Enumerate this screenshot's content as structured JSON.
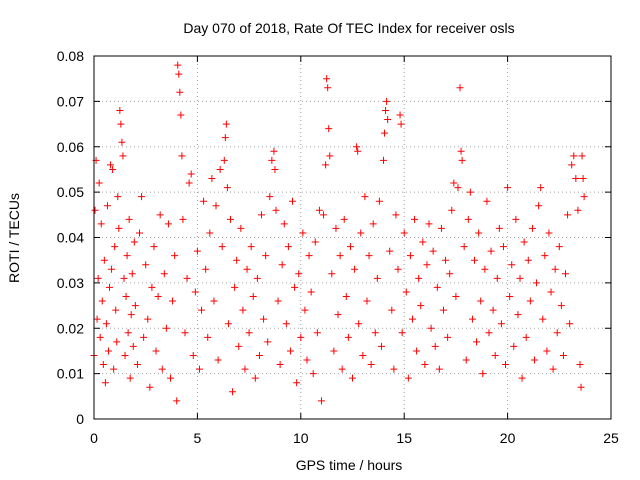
{
  "chart_data": {
    "type": "scatter",
    "title": "Day 070 of 2018, Rate Of TEC Index for receiver osls",
    "xlabel": "GPS time / hours",
    "ylabel": "ROTI / TECUs",
    "xlim": [
      0,
      25
    ],
    "ylim": [
      0,
      0.08
    ],
    "x_ticks": [
      0,
      5,
      10,
      15,
      20,
      25
    ],
    "x_tick_labels": [
      "0",
      "5",
      "10",
      "15",
      "20",
      "25"
    ],
    "y_ticks": [
      0,
      0.01,
      0.02,
      0.03,
      0.04,
      0.05,
      0.06,
      0.07,
      0.08
    ],
    "y_tick_labels": [
      "0",
      "0.01",
      "0.02",
      "0.03",
      "0.04",
      "0.05",
      "0.06",
      "0.07",
      "0.08"
    ],
    "grid": true,
    "marker": "+",
    "series": [
      {
        "name": "ROTI",
        "color": "#ff0000",
        "points": [
          [
            0.0,
            0.014
          ],
          [
            0.05,
            0.046
          ],
          [
            0.1,
            0.057
          ],
          [
            0.15,
            0.022
          ],
          [
            0.2,
            0.031
          ],
          [
            0.25,
            0.052
          ],
          [
            0.3,
            0.018
          ],
          [
            0.35,
            0.043
          ],
          [
            0.4,
            0.026
          ],
          [
            0.45,
            0.012
          ],
          [
            0.5,
            0.035
          ],
          [
            0.55,
            0.008
          ],
          [
            0.6,
            0.021
          ],
          [
            0.65,
            0.047
          ],
          [
            0.7,
            0.015
          ],
          [
            0.75,
            0.029
          ],
          [
            0.8,
            0.056
          ],
          [
            0.85,
            0.033
          ],
          [
            0.9,
            0.055
          ],
          [
            0.95,
            0.011
          ],
          [
            1.0,
            0.038
          ],
          [
            1.05,
            0.024
          ],
          [
            1.1,
            0.017
          ],
          [
            1.15,
            0.049
          ],
          [
            1.2,
            0.042
          ],
          [
            1.25,
            0.068
          ],
          [
            1.3,
            0.065
          ],
          [
            1.35,
            0.061
          ],
          [
            1.4,
            0.058
          ],
          [
            1.45,
            0.031
          ],
          [
            1.5,
            0.014
          ],
          [
            1.55,
            0.027
          ],
          [
            1.6,
            0.036
          ],
          [
            1.65,
            0.019
          ],
          [
            1.7,
            0.044
          ],
          [
            1.75,
            0.009
          ],
          [
            1.8,
            0.023
          ],
          [
            1.85,
            0.032
          ],
          [
            1.9,
            0.016
          ],
          [
            1.95,
            0.039
          ],
          [
            2.0,
            0.025
          ],
          [
            2.1,
            0.012
          ],
          [
            2.2,
            0.041
          ],
          [
            2.3,
            0.049
          ],
          [
            2.4,
            0.018
          ],
          [
            2.5,
            0.034
          ],
          [
            2.6,
            0.022
          ],
          [
            2.7,
            0.007
          ],
          [
            2.8,
            0.029
          ],
          [
            2.9,
            0.038
          ],
          [
            3.0,
            0.015
          ],
          [
            3.1,
            0.027
          ],
          [
            3.2,
            0.045
          ],
          [
            3.3,
            0.011
          ],
          [
            3.4,
            0.032
          ],
          [
            3.5,
            0.02
          ],
          [
            3.6,
            0.043
          ],
          [
            3.7,
            0.009
          ],
          [
            3.8,
            0.026
          ],
          [
            3.9,
            0.036
          ],
          [
            4.0,
            0.004
          ],
          [
            4.05,
            0.078
          ],
          [
            4.1,
            0.076
          ],
          [
            4.15,
            0.072
          ],
          [
            4.2,
            0.067
          ],
          [
            4.25,
            0.058
          ],
          [
            4.3,
            0.044
          ],
          [
            4.4,
            0.019
          ],
          [
            4.5,
            0.031
          ],
          [
            4.6,
            0.052
          ],
          [
            4.7,
            0.054
          ],
          [
            4.8,
            0.014
          ],
          [
            4.9,
            0.028
          ],
          [
            5.0,
            0.037
          ],
          [
            5.1,
            0.011
          ],
          [
            5.2,
            0.024
          ],
          [
            5.3,
            0.048
          ],
          [
            5.4,
            0.033
          ],
          [
            5.5,
            0.018
          ],
          [
            5.6,
            0.041
          ],
          [
            5.7,
            0.053
          ],
          [
            5.8,
            0.026
          ],
          [
            5.9,
            0.047
          ],
          [
            6.0,
            0.013
          ],
          [
            6.1,
            0.055
          ],
          [
            6.2,
            0.038
          ],
          [
            6.3,
            0.057
          ],
          [
            6.35,
            0.062
          ],
          [
            6.4,
            0.065
          ],
          [
            6.45,
            0.051
          ],
          [
            6.5,
            0.021
          ],
          [
            6.6,
            0.044
          ],
          [
            6.7,
            0.006
          ],
          [
            6.8,
            0.029
          ],
          [
            6.9,
            0.035
          ],
          [
            7.0,
            0.016
          ],
          [
            7.1,
            0.042
          ],
          [
            7.2,
            0.024
          ],
          [
            7.3,
            0.011
          ],
          [
            7.4,
            0.033
          ],
          [
            7.5,
            0.019
          ],
          [
            7.6,
            0.038
          ],
          [
            7.7,
            0.027
          ],
          [
            7.8,
            0.009
          ],
          [
            7.9,
            0.031
          ],
          [
            8.0,
            0.014
          ],
          [
            8.1,
            0.045
          ],
          [
            8.2,
            0.022
          ],
          [
            8.3,
            0.036
          ],
          [
            8.4,
            0.017
          ],
          [
            8.5,
            0.049
          ],
          [
            8.6,
            0.057
          ],
          [
            8.7,
            0.059
          ],
          [
            8.75,
            0.055
          ],
          [
            8.8,
            0.046
          ],
          [
            8.9,
            0.026
          ],
          [
            9.0,
            0.012
          ],
          [
            9.1,
            0.034
          ],
          [
            9.2,
            0.043
          ],
          [
            9.3,
            0.021
          ],
          [
            9.4,
            0.038
          ],
          [
            9.5,
            0.015
          ],
          [
            9.6,
            0.048
          ],
          [
            9.7,
            0.029
          ],
          [
            9.8,
            0.008
          ],
          [
            9.9,
            0.032
          ],
          [
            10.0,
            0.018
          ],
          [
            10.1,
            0.041
          ],
          [
            10.2,
            0.024
          ],
          [
            10.3,
            0.013
          ],
          [
            10.4,
            0.036
          ],
          [
            10.5,
            0.028
          ],
          [
            10.6,
            0.01
          ],
          [
            10.7,
            0.039
          ],
          [
            10.8,
            0.019
          ],
          [
            10.9,
            0.046
          ],
          [
            11.0,
            0.004
          ],
          [
            11.1,
            0.045
          ],
          [
            11.2,
            0.056
          ],
          [
            11.25,
            0.075
          ],
          [
            11.3,
            0.073
          ],
          [
            11.35,
            0.064
          ],
          [
            11.4,
            0.058
          ],
          [
            11.5,
            0.032
          ],
          [
            11.6,
            0.015
          ],
          [
            11.7,
            0.042
          ],
          [
            11.8,
            0.023
          ],
          [
            11.9,
            0.036
          ],
          [
            12.0,
            0.011
          ],
          [
            12.1,
            0.044
          ],
          [
            12.2,
            0.027
          ],
          [
            12.3,
            0.018
          ],
          [
            12.4,
            0.038
          ],
          [
            12.5,
            0.009
          ],
          [
            12.6,
            0.033
          ],
          [
            12.7,
            0.06
          ],
          [
            12.75,
            0.059
          ],
          [
            12.8,
            0.021
          ],
          [
            12.9,
            0.041
          ],
          [
            13.0,
            0.014
          ],
          [
            13.1,
            0.049
          ],
          [
            13.2,
            0.026
          ],
          [
            13.3,
            0.036
          ],
          [
            13.4,
            0.012
          ],
          [
            13.5,
            0.043
          ],
          [
            13.6,
            0.019
          ],
          [
            13.7,
            0.031
          ],
          [
            13.8,
            0.048
          ],
          [
            13.9,
            0.016
          ],
          [
            14.0,
            0.057
          ],
          [
            14.05,
            0.063
          ],
          [
            14.1,
            0.068
          ],
          [
            14.15,
            0.07
          ],
          [
            14.2,
            0.066
          ],
          [
            14.3,
            0.037
          ],
          [
            14.4,
            0.024
          ],
          [
            14.5,
            0.011
          ],
          [
            14.6,
            0.045
          ],
          [
            14.7,
            0.033
          ],
          [
            14.8,
            0.067
          ],
          [
            14.85,
            0.065
          ],
          [
            14.9,
            0.019
          ],
          [
            15.0,
            0.041
          ],
          [
            15.1,
            0.028
          ],
          [
            15.2,
            0.009
          ],
          [
            15.3,
            0.036
          ],
          [
            15.4,
            0.022
          ],
          [
            15.5,
            0.044
          ],
          [
            15.6,
            0.015
          ],
          [
            15.7,
            0.031
          ],
          [
            15.8,
            0.025
          ],
          [
            15.9,
            0.039
          ],
          [
            16.0,
            0.012
          ],
          [
            16.1,
            0.034
          ],
          [
            16.2,
            0.043
          ],
          [
            16.3,
            0.02
          ],
          [
            16.4,
            0.037
          ],
          [
            16.5,
            0.016
          ],
          [
            16.6,
            0.029
          ],
          [
            16.7,
            0.011
          ],
          [
            16.8,
            0.042
          ],
          [
            16.9,
            0.024
          ],
          [
            17.0,
            0.035
          ],
          [
            17.1,
            0.018
          ],
          [
            17.2,
            0.032
          ],
          [
            17.3,
            0.046
          ],
          [
            17.4,
            0.052
          ],
          [
            17.5,
            0.027
          ],
          [
            17.6,
            0.051
          ],
          [
            17.7,
            0.073
          ],
          [
            17.75,
            0.059
          ],
          [
            17.8,
            0.057
          ],
          [
            17.9,
            0.038
          ],
          [
            18.0,
            0.013
          ],
          [
            18.1,
            0.044
          ],
          [
            18.2,
            0.05
          ],
          [
            18.3,
            0.022
          ],
          [
            18.4,
            0.035
          ],
          [
            18.5,
            0.017
          ],
          [
            18.6,
            0.041
          ],
          [
            18.7,
            0.026
          ],
          [
            18.8,
            0.01
          ],
          [
            18.9,
            0.033
          ],
          [
            19.0,
            0.048
          ],
          [
            19.1,
            0.019
          ],
          [
            19.2,
            0.037
          ],
          [
            19.3,
            0.024
          ],
          [
            19.4,
            0.014
          ],
          [
            19.5,
            0.031
          ],
          [
            19.6,
            0.042
          ],
          [
            19.7,
            0.021
          ],
          [
            19.8,
            0.038
          ],
          [
            19.9,
            0.012
          ],
          [
            20.0,
            0.051
          ],
          [
            20.1,
            0.027
          ],
          [
            20.2,
            0.034
          ],
          [
            20.3,
            0.016
          ],
          [
            20.4,
            0.044
          ],
          [
            20.5,
            0.023
          ],
          [
            20.6,
            0.031
          ],
          [
            20.7,
            0.009
          ],
          [
            20.8,
            0.039
          ],
          [
            20.9,
            0.018
          ],
          [
            21.0,
            0.035
          ],
          [
            21.1,
            0.026
          ],
          [
            21.2,
            0.042
          ],
          [
            21.3,
            0.013
          ],
          [
            21.4,
            0.03
          ],
          [
            21.5,
            0.047
          ],
          [
            21.6,
            0.051
          ],
          [
            21.7,
            0.022
          ],
          [
            21.8,
            0.036
          ],
          [
            21.9,
            0.015
          ],
          [
            22.0,
            0.041
          ],
          [
            22.1,
            0.028
          ],
          [
            22.2,
            0.011
          ],
          [
            22.3,
            0.033
          ],
          [
            22.4,
            0.019
          ],
          [
            22.5,
            0.038
          ],
          [
            22.6,
            0.025
          ],
          [
            22.7,
            0.014
          ],
          [
            22.8,
            0.032
          ],
          [
            22.9,
            0.045
          ],
          [
            23.0,
            0.021
          ],
          [
            23.1,
            0.056
          ],
          [
            23.2,
            0.058
          ],
          [
            23.3,
            0.053
          ],
          [
            23.4,
            0.046
          ],
          [
            23.5,
            0.012
          ],
          [
            23.55,
            0.007
          ],
          [
            23.6,
            0.058
          ],
          [
            23.65,
            0.053
          ],
          [
            23.7,
            0.049
          ]
        ]
      }
    ]
  }
}
